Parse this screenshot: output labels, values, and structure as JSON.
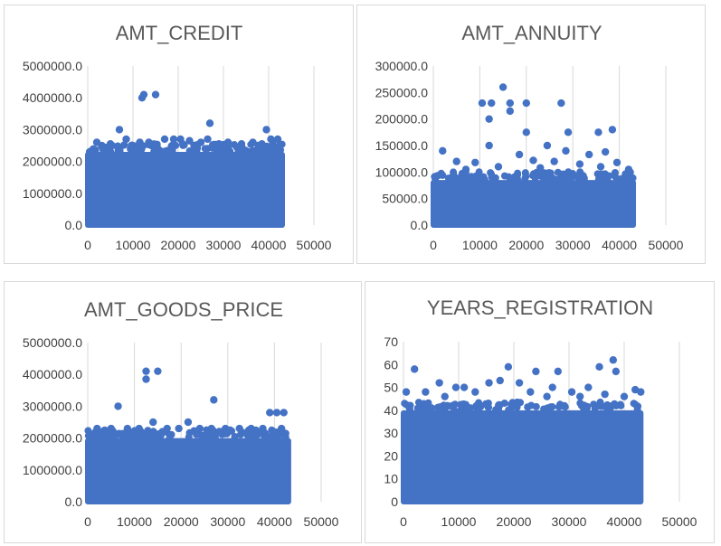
{
  "chart_data": [
    {
      "type": "scatter",
      "title": "AMT_CREDIT",
      "xlim": [
        0,
        50000
      ],
      "ylim": [
        0,
        5000000
      ],
      "xticks": [
        "0",
        "10000",
        "20000",
        "30000",
        "40000",
        "50000"
      ],
      "yticks": [
        "0.0",
        "1000000.0",
        "2000000.0",
        "3000000.0",
        "4000000.0",
        "5000000.0"
      ],
      "grid": "vertical",
      "legend": "none",
      "color": "#4472C4",
      "dense_region": {
        "x_range": [
          0,
          43000
        ],
        "y_range": [
          0,
          2300000
        ]
      },
      "points": [
        {
          "x": 12000,
          "y": 4000000
        },
        {
          "x": 12400,
          "y": 4100000
        },
        {
          "x": 15000,
          "y": 4100000
        },
        {
          "x": 27000,
          "y": 3200000
        },
        {
          "x": 7000,
          "y": 3000000
        },
        {
          "x": 39500,
          "y": 3000000
        },
        {
          "x": 2000,
          "y": 2600000
        },
        {
          "x": 5000,
          "y": 2550000
        },
        {
          "x": 8500,
          "y": 2700000
        },
        {
          "x": 11500,
          "y": 2600000
        },
        {
          "x": 13500,
          "y": 2600000
        },
        {
          "x": 17000,
          "y": 2700000
        },
        {
          "x": 19000,
          "y": 2700000
        },
        {
          "x": 20500,
          "y": 2700000
        },
        {
          "x": 22500,
          "y": 2650000
        },
        {
          "x": 25000,
          "y": 2600000
        },
        {
          "x": 26500,
          "y": 2700000
        },
        {
          "x": 29000,
          "y": 2550000
        },
        {
          "x": 31000,
          "y": 2600000
        },
        {
          "x": 34000,
          "y": 2550000
        },
        {
          "x": 36500,
          "y": 2600000
        },
        {
          "x": 38500,
          "y": 2550000
        },
        {
          "x": 40500,
          "y": 2700000
        },
        {
          "x": 42000,
          "y": 2700000
        },
        {
          "x": 3500,
          "y": 2450000
        },
        {
          "x": 10000,
          "y": 2450000
        },
        {
          "x": 23500,
          "y": 2500000
        },
        {
          "x": 33000,
          "y": 2450000
        },
        {
          "x": 41000,
          "y": 2500000
        }
      ]
    },
    {
      "type": "scatter",
      "title": "AMT_ANNUITY",
      "xlim": [
        0,
        50000
      ],
      "ylim": [
        0,
        300000
      ],
      "xticks": [
        "0",
        "10000",
        "20000",
        "30000",
        "40000",
        "50000"
      ],
      "yticks": [
        "0.0",
        "50000.0",
        "100000.0",
        "150000.0",
        "200000.0",
        "250000.0",
        "300000.0"
      ],
      "grid": "vertical",
      "legend": "none",
      "color": "#4472C4",
      "dense_region": {
        "x_range": [
          0,
          43000
        ],
        "y_range": [
          0,
          85000
        ]
      },
      "points": [
        {
          "x": 15000,
          "y": 260000
        },
        {
          "x": 10500,
          "y": 230000
        },
        {
          "x": 12500,
          "y": 230000
        },
        {
          "x": 16500,
          "y": 230000
        },
        {
          "x": 20000,
          "y": 230000
        },
        {
          "x": 27500,
          "y": 230000
        },
        {
          "x": 12000,
          "y": 200000
        },
        {
          "x": 16500,
          "y": 215000
        },
        {
          "x": 20000,
          "y": 175000
        },
        {
          "x": 29000,
          "y": 175000
        },
        {
          "x": 35500,
          "y": 175000
        },
        {
          "x": 38500,
          "y": 180000
        },
        {
          "x": 12000,
          "y": 150000
        },
        {
          "x": 24500,
          "y": 150000
        },
        {
          "x": 2000,
          "y": 140000
        },
        {
          "x": 28500,
          "y": 140000
        },
        {
          "x": 37000,
          "y": 138000
        },
        {
          "x": 18500,
          "y": 133000
        },
        {
          "x": 33500,
          "y": 133000
        },
        {
          "x": 5000,
          "y": 120000
        },
        {
          "x": 9000,
          "y": 118000
        },
        {
          "x": 21500,
          "y": 122000
        },
        {
          "x": 26000,
          "y": 120000
        },
        {
          "x": 31500,
          "y": 115000
        },
        {
          "x": 39500,
          "y": 118000
        },
        {
          "x": 42000,
          "y": 105000
        },
        {
          "x": 14000,
          "y": 110000
        },
        {
          "x": 7000,
          "y": 105000
        },
        {
          "x": 23000,
          "y": 108000
        },
        {
          "x": 36000,
          "y": 110000
        }
      ]
    },
    {
      "type": "scatter",
      "title": "AMT_GOODS_PRICE",
      "xlim": [
        0,
        50000
      ],
      "ylim": [
        0,
        5000000
      ],
      "xticks": [
        "0",
        "10000",
        "20000",
        "30000",
        "40000",
        "50000"
      ],
      "yticks": [
        "0.0",
        "1000000.0",
        "2000000.0",
        "3000000.0",
        "4000000.0",
        "5000000.0"
      ],
      "grid": "vertical",
      "legend": "none",
      "color": "#4472C4",
      "dense_region": {
        "x_range": [
          0,
          43000
        ],
        "y_range": [
          0,
          2000000
        ]
      },
      "points": [
        {
          "x": 12500,
          "y": 4100000
        },
        {
          "x": 12500,
          "y": 3850000
        },
        {
          "x": 15000,
          "y": 4100000
        },
        {
          "x": 6500,
          "y": 3000000
        },
        {
          "x": 27000,
          "y": 3200000
        },
        {
          "x": 39000,
          "y": 2800000
        },
        {
          "x": 40500,
          "y": 2800000
        },
        {
          "x": 42000,
          "y": 2800000
        },
        {
          "x": 14000,
          "y": 2500000
        },
        {
          "x": 21500,
          "y": 2500000
        },
        {
          "x": 2000,
          "y": 2300000
        },
        {
          "x": 5000,
          "y": 2300000
        },
        {
          "x": 8500,
          "y": 2300000
        },
        {
          "x": 11000,
          "y": 2300000
        },
        {
          "x": 17000,
          "y": 2300000
        },
        {
          "x": 19500,
          "y": 2300000
        },
        {
          "x": 24000,
          "y": 2300000
        },
        {
          "x": 26500,
          "y": 2300000
        },
        {
          "x": 29500,
          "y": 2300000
        },
        {
          "x": 32500,
          "y": 2300000
        },
        {
          "x": 35000,
          "y": 2300000
        },
        {
          "x": 37500,
          "y": 2300000
        },
        {
          "x": 41500,
          "y": 2300000
        },
        {
          "x": 16000,
          "y": 2200000
        },
        {
          "x": 30500,
          "y": 2250000
        }
      ]
    },
    {
      "type": "scatter",
      "title": "YEARS_REGISTRATION",
      "xlim": [
        0,
        50000
      ],
      "ylim": [
        0,
        70
      ],
      "xticks": [
        "0",
        "10000",
        "20000",
        "30000",
        "40000",
        "50000"
      ],
      "yticks": [
        "0",
        "10",
        "20",
        "30",
        "40",
        "50",
        "60",
        "70"
      ],
      "grid": "vertical",
      "legend": "none",
      "color": "#4472C4",
      "dense_region": {
        "x_range": [
          0,
          43000
        ],
        "y_range": [
          0,
          40
        ]
      },
      "points": [
        {
          "x": 38000,
          "y": 62
        },
        {
          "x": 35500,
          "y": 59
        },
        {
          "x": 19000,
          "y": 59
        },
        {
          "x": 2000,
          "y": 58
        },
        {
          "x": 24000,
          "y": 57
        },
        {
          "x": 28000,
          "y": 57
        },
        {
          "x": 38500,
          "y": 57
        },
        {
          "x": 17500,
          "y": 53
        },
        {
          "x": 6500,
          "y": 52
        },
        {
          "x": 15500,
          "y": 52
        },
        {
          "x": 21000,
          "y": 52
        },
        {
          "x": 9500,
          "y": 50
        },
        {
          "x": 11000,
          "y": 50
        },
        {
          "x": 27000,
          "y": 50
        },
        {
          "x": 33500,
          "y": 50
        },
        {
          "x": 42000,
          "y": 49
        },
        {
          "x": 43000,
          "y": 48
        },
        {
          "x": 500,
          "y": 48
        },
        {
          "x": 4000,
          "y": 48
        },
        {
          "x": 13000,
          "y": 48
        },
        {
          "x": 23000,
          "y": 48
        },
        {
          "x": 30500,
          "y": 48
        },
        {
          "x": 36500,
          "y": 47
        },
        {
          "x": 7500,
          "y": 46
        },
        {
          "x": 26000,
          "y": 46
        },
        {
          "x": 32000,
          "y": 46
        },
        {
          "x": 40000,
          "y": 46
        }
      ]
    }
  ]
}
